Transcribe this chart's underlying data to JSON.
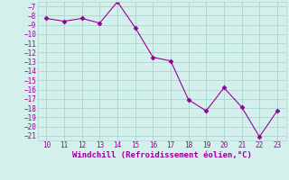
{
  "x": [
    10,
    11,
    12,
    13,
    14,
    15,
    16,
    17,
    18,
    19,
    20,
    21,
    22,
    23
  ],
  "y": [
    -8.3,
    -8.6,
    -8.3,
    -8.8,
    -6.5,
    -9.3,
    -12.5,
    -12.9,
    -17.1,
    -18.3,
    -15.8,
    -17.9,
    -21.1,
    -18.3
  ],
  "line_color": "#990099",
  "marker": "D",
  "marker_size": 2.5,
  "bg_color": "#d4f0ec",
  "grid_color": "#b0d8d2",
  "xlabel": "Windchill (Refroidissement éolien,°C)",
  "xlabel_color": "#990099",
  "tick_color": "#990099",
  "ylim": [
    -21.5,
    -6.5
  ],
  "xlim": [
    9.5,
    23.5
  ],
  "yticks": [
    -7,
    -8,
    -9,
    -10,
    -11,
    -12,
    -13,
    -14,
    -15,
    -16,
    -17,
    -18,
    -19,
    -20,
    -21
  ],
  "xticks": [
    10,
    11,
    12,
    13,
    14,
    15,
    16,
    17,
    18,
    19,
    20,
    21,
    22,
    23
  ],
  "tick_fontsize": 5.5,
  "xlabel_fontsize": 6.5,
  "linewidth": 0.8
}
